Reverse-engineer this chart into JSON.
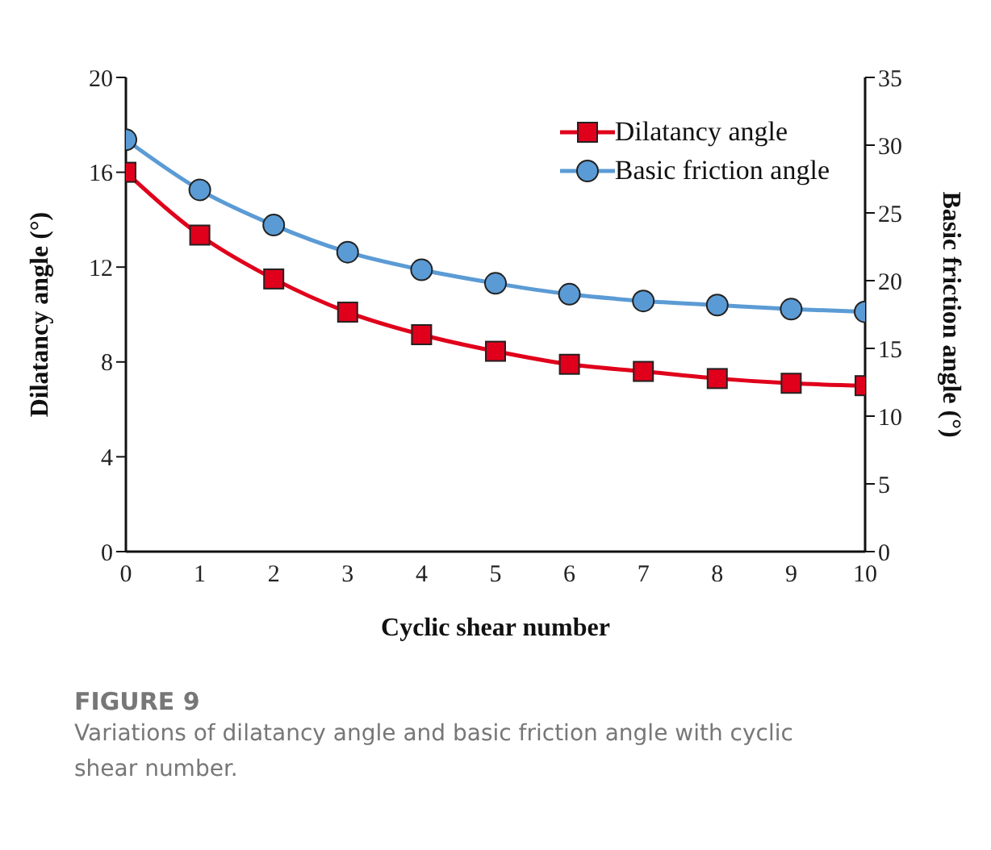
{
  "chart_data": {
    "type": "line",
    "title": "FIGURE 9",
    "subtitle": "Variations of dilatancy angle and basic friction angle with cyclic shear number.",
    "xlabel": "Cyclic shear number",
    "ylabel": "Dilatancy angle (°)",
    "y2label": "Basic friction angle (°)",
    "x": [
      0,
      1,
      2,
      3,
      4,
      5,
      6,
      7,
      8,
      9,
      10
    ],
    "xlim": [
      0,
      10
    ],
    "xticks": [
      0,
      1,
      2,
      3,
      4,
      5,
      6,
      7,
      8,
      9,
      10
    ],
    "ylim": [
      0,
      20
    ],
    "yticks": [
      0,
      4,
      8,
      12,
      16,
      20
    ],
    "y2lim": [
      0,
      35
    ],
    "y2ticks": [
      0,
      5,
      10,
      15,
      20,
      25,
      30,
      35
    ],
    "series": [
      {
        "name": "Dilatancy angle",
        "color": "#e0001b",
        "marker": "square",
        "values": [
          16.0,
          13.35,
          11.5,
          10.1,
          9.15,
          8.45,
          7.9,
          7.6,
          7.3,
          7.1,
          7.0
        ]
      },
      {
        "name": "Basic friction angle",
        "color": "#5b9bd5",
        "marker": "circle",
        "axis": "y2",
        "values": [
          30.4,
          26.7,
          24.1,
          22.1,
          20.8,
          19.8,
          19.0,
          18.5,
          18.2,
          17.9,
          17.7
        ]
      }
    ],
    "line_style": "solid",
    "grid": false,
    "legend": "top right"
  }
}
